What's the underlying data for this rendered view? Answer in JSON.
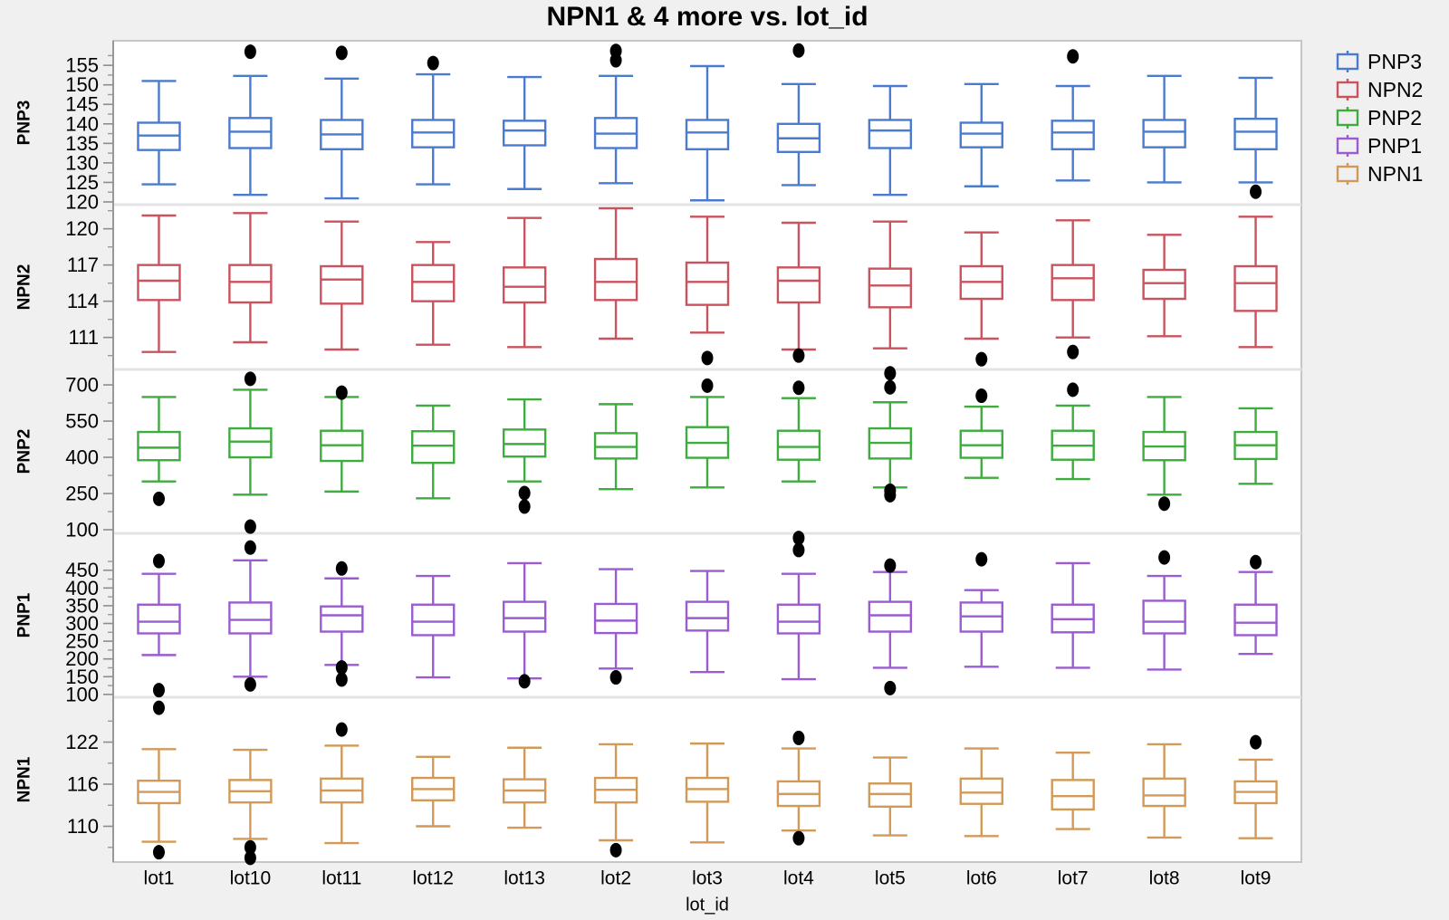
{
  "chart_data": {
    "type": "boxplot",
    "title": "NPN1 & 4 more vs. lot_id",
    "xlabel": "lot_id",
    "legend_position": "top-right",
    "grid": false,
    "categories": [
      "lot1",
      "lot10",
      "lot11",
      "lot12",
      "lot13",
      "lot2",
      "lot3",
      "lot4",
      "lot5",
      "lot6",
      "lot7",
      "lot8",
      "lot9"
    ],
    "legend": [
      {
        "label": "PNP3",
        "color": "#4B7BCE"
      },
      {
        "label": "NPN2",
        "color": "#C9535E"
      },
      {
        "label": "PNP2",
        "color": "#3EAC3E"
      },
      {
        "label": "PNP1",
        "color": "#9A5CD0"
      },
      {
        "label": "NPN1",
        "color": "#D29A58"
      }
    ],
    "outlier_color": "#000000",
    "panels": [
      {
        "name": "PNP3",
        "color": "#4B7BCE",
        "ylim": [
          119.3,
          161.3
        ],
        "yticks": [
          155,
          150,
          145,
          140,
          135,
          130,
          125,
          120
        ],
        "boxes": [
          {
            "lot": "lot1",
            "whislo": 124.5,
            "q1": 133.3,
            "med": 137.0,
            "q3": 140.3,
            "whishi": 151.0,
            "outliers": []
          },
          {
            "lot": "lot10",
            "whislo": 121.8,
            "q1": 133.8,
            "med": 138.0,
            "q3": 141.5,
            "whishi": 152.3,
            "outliers": [
              158.5
            ]
          },
          {
            "lot": "lot11",
            "whislo": 120.9,
            "q1": 133.5,
            "med": 137.3,
            "q3": 141.0,
            "whishi": 151.6,
            "outliers": [
              158.2
            ]
          },
          {
            "lot": "lot12",
            "whislo": 124.5,
            "q1": 134.0,
            "med": 137.8,
            "q3": 141.0,
            "whishi": 152.7,
            "outliers": [
              155.6
            ]
          },
          {
            "lot": "lot13",
            "whislo": 123.3,
            "q1": 134.5,
            "med": 138.3,
            "q3": 140.8,
            "whishi": 152.0,
            "outliers": []
          },
          {
            "lot": "lot2",
            "whislo": 124.8,
            "q1": 133.8,
            "med": 137.5,
            "q3": 141.5,
            "whishi": 152.3,
            "outliers": [
              158.7,
              156.3
            ]
          },
          {
            "lot": "lot3",
            "whislo": 120.4,
            "q1": 133.5,
            "med": 137.8,
            "q3": 141.0,
            "whishi": 154.8,
            "outliers": []
          },
          {
            "lot": "lot4",
            "whislo": 124.3,
            "q1": 132.8,
            "med": 136.3,
            "q3": 140.0,
            "whishi": 150.2,
            "outliers": [
              158.8
            ]
          },
          {
            "lot": "lot5",
            "whislo": 121.8,
            "q1": 133.8,
            "med": 138.3,
            "q3": 141.0,
            "whishi": 149.7,
            "outliers": []
          },
          {
            "lot": "lot6",
            "whislo": 124.0,
            "q1": 134.0,
            "med": 137.5,
            "q3": 140.3,
            "whishi": 150.2,
            "outliers": []
          },
          {
            "lot": "lot7",
            "whislo": 125.5,
            "q1": 133.5,
            "med": 137.8,
            "q3": 140.8,
            "whishi": 149.7,
            "outliers": [
              157.3
            ]
          },
          {
            "lot": "lot8",
            "whislo": 125.0,
            "q1": 134.0,
            "med": 138.0,
            "q3": 141.0,
            "whishi": 152.3,
            "outliers": []
          },
          {
            "lot": "lot9",
            "whislo": 125.0,
            "q1": 133.5,
            "med": 138.0,
            "q3": 141.3,
            "whishi": 151.8,
            "outliers": [
              122.6
            ]
          }
        ]
      },
      {
        "name": "NPN2",
        "color": "#C9535E",
        "ylim": [
          108.35,
          122.0
        ],
        "yticks": [
          120,
          117,
          114,
          111
        ],
        "boxes": [
          {
            "lot": "lot1",
            "whislo": 109.8,
            "q1": 114.1,
            "med": 115.7,
            "q3": 117.0,
            "whishi": 121.1,
            "outliers": []
          },
          {
            "lot": "lot10",
            "whislo": 110.6,
            "q1": 113.9,
            "med": 115.6,
            "q3": 117.0,
            "whishi": 121.3,
            "outliers": []
          },
          {
            "lot": "lot11",
            "whislo": 110.0,
            "q1": 113.8,
            "med": 115.8,
            "q3": 116.9,
            "whishi": 120.6,
            "outliers": []
          },
          {
            "lot": "lot12",
            "whislo": 110.4,
            "q1": 114.0,
            "med": 115.6,
            "q3": 117.0,
            "whishi": 118.9,
            "outliers": []
          },
          {
            "lot": "lot13",
            "whislo": 110.2,
            "q1": 113.9,
            "med": 115.2,
            "q3": 116.8,
            "whishi": 120.9,
            "outliers": []
          },
          {
            "lot": "lot2",
            "whislo": 110.9,
            "q1": 114.1,
            "med": 115.6,
            "q3": 117.5,
            "whishi": 121.7,
            "outliers": []
          },
          {
            "lot": "lot3",
            "whislo": 111.4,
            "q1": 113.7,
            "med": 115.6,
            "q3": 117.2,
            "whishi": 121.0,
            "outliers": [
              109.3
            ]
          },
          {
            "lot": "lot4",
            "whislo": 110.0,
            "q1": 113.9,
            "med": 115.7,
            "q3": 116.8,
            "whishi": 120.5,
            "outliers": [
              109.5
            ]
          },
          {
            "lot": "lot5",
            "whislo": 110.1,
            "q1": 113.5,
            "med": 115.3,
            "q3": 116.7,
            "whishi": 120.6,
            "outliers": []
          },
          {
            "lot": "lot6",
            "whislo": 110.9,
            "q1": 114.2,
            "med": 115.6,
            "q3": 116.9,
            "whishi": 119.7,
            "outliers": [
              109.2
            ]
          },
          {
            "lot": "lot7",
            "whislo": 111.0,
            "q1": 114.1,
            "med": 115.9,
            "q3": 117.0,
            "whishi": 120.7,
            "outliers": [
              109.8
            ]
          },
          {
            "lot": "lot8",
            "whislo": 111.1,
            "q1": 114.2,
            "med": 115.5,
            "q3": 116.6,
            "whishi": 119.5,
            "outliers": []
          },
          {
            "lot": "lot9",
            "whislo": 110.2,
            "q1": 113.2,
            "med": 115.5,
            "q3": 116.9,
            "whishi": 121.0,
            "outliers": []
          }
        ]
      },
      {
        "name": "PNP2",
        "color": "#3EAC3E",
        "ylim": [
          85,
          764
        ],
        "yticks": [
          700,
          550,
          400,
          250,
          100
        ],
        "boxes": [
          {
            "lot": "lot1",
            "whislo": 300,
            "q1": 388,
            "med": 440,
            "q3": 505,
            "whishi": 650,
            "outliers": [
              228
            ]
          },
          {
            "lot": "lot10",
            "whislo": 245,
            "q1": 400,
            "med": 465,
            "q3": 520,
            "whishi": 680,
            "outliers": [
              725,
              113
            ]
          },
          {
            "lot": "lot11",
            "whislo": 258,
            "q1": 385,
            "med": 450,
            "q3": 510,
            "whishi": 650,
            "outliers": [
              668
            ]
          },
          {
            "lot": "lot12",
            "whislo": 230,
            "q1": 377,
            "med": 448,
            "q3": 508,
            "whishi": 614,
            "outliers": []
          },
          {
            "lot": "lot13",
            "whislo": 300,
            "q1": 403,
            "med": 455,
            "q3": 515,
            "whishi": 640,
            "outliers": [
              252,
              196
            ]
          },
          {
            "lot": "lot2",
            "whislo": 268,
            "q1": 395,
            "med": 443,
            "q3": 500,
            "whishi": 620,
            "outliers": []
          },
          {
            "lot": "lot3",
            "whislo": 275,
            "q1": 398,
            "med": 460,
            "q3": 525,
            "whishi": 650,
            "outliers": [
              697
            ]
          },
          {
            "lot": "lot4",
            "whislo": 300,
            "q1": 390,
            "med": 443,
            "q3": 510,
            "whishi": 645,
            "outliers": [
              688
            ]
          },
          {
            "lot": "lot5",
            "whislo": 275,
            "q1": 395,
            "med": 460,
            "q3": 520,
            "whishi": 628,
            "outliers": [
              748,
              690,
              262,
              243
            ]
          },
          {
            "lot": "lot6",
            "whislo": 315,
            "q1": 398,
            "med": 450,
            "q3": 510,
            "whishi": 610,
            "outliers": [
              655
            ]
          },
          {
            "lot": "lot7",
            "whislo": 310,
            "q1": 390,
            "med": 448,
            "q3": 510,
            "whishi": 614,
            "outliers": [
              680
            ]
          },
          {
            "lot": "lot8",
            "whislo": 245,
            "q1": 388,
            "med": 445,
            "q3": 505,
            "whishi": 650,
            "outliers": [
              208
            ]
          },
          {
            "lot": "lot9",
            "whislo": 290,
            "q1": 393,
            "med": 450,
            "q3": 505,
            "whishi": 603,
            "outliers": []
          }
        ]
      },
      {
        "name": "PNP1",
        "color": "#9A5CD0",
        "ylim": [
          92,
          554
        ],
        "yticks": [
          450,
          400,
          350,
          300,
          250,
          200,
          150,
          100
        ],
        "boxes": [
          {
            "lot": "lot1",
            "whislo": 211,
            "q1": 272,
            "med": 305,
            "q3": 353,
            "whishi": 440,
            "outliers": [
              476,
              112
            ]
          },
          {
            "lot": "lot10",
            "whislo": 150,
            "q1": 272,
            "med": 310,
            "q3": 359,
            "whishi": 478,
            "outliers": [
              514,
              128
            ]
          },
          {
            "lot": "lot11",
            "whislo": 183,
            "q1": 277,
            "med": 323,
            "q3": 348,
            "whishi": 427,
            "outliers": [
              455,
              176,
              142
            ]
          },
          {
            "lot": "lot12",
            "whislo": 148,
            "q1": 267,
            "med": 305,
            "q3": 353,
            "whishi": 434,
            "outliers": []
          },
          {
            "lot": "lot13",
            "whislo": 145,
            "q1": 277,
            "med": 315,
            "q3": 361,
            "whishi": 470,
            "outliers": [
              137
            ]
          },
          {
            "lot": "lot2",
            "whislo": 173,
            "q1": 273,
            "med": 308,
            "q3": 355,
            "whishi": 453,
            "outliers": [
              148
            ]
          },
          {
            "lot": "lot3",
            "whislo": 163,
            "q1": 280,
            "med": 315,
            "q3": 361,
            "whishi": 448,
            "outliers": []
          },
          {
            "lot": "lot4",
            "whislo": 143,
            "q1": 272,
            "med": 305,
            "q3": 353,
            "whishi": 440,
            "outliers": [
              541,
              507
            ]
          },
          {
            "lot": "lot5",
            "whislo": 175,
            "q1": 277,
            "med": 323,
            "q3": 361,
            "whishi": 445,
            "outliers": [
              463,
              118
            ]
          },
          {
            "lot": "lot6",
            "whislo": 178,
            "q1": 277,
            "med": 320,
            "q3": 359,
            "whishi": 394,
            "outliers": [
              481
            ]
          },
          {
            "lot": "lot7",
            "whislo": 175,
            "q1": 275,
            "med": 312,
            "q3": 353,
            "whishi": 470,
            "outliers": []
          },
          {
            "lot": "lot8",
            "whislo": 170,
            "q1": 272,
            "med": 305,
            "q3": 364,
            "whishi": 434,
            "outliers": [
              486
            ]
          },
          {
            "lot": "lot9",
            "whislo": 214,
            "q1": 267,
            "med": 302,
            "q3": 353,
            "whishi": 445,
            "outliers": [
              473
            ]
          }
        ]
      },
      {
        "name": "NPN1",
        "color": "#D29A58",
        "ylim": [
          104.9,
          128.4
        ],
        "yticks": [
          122,
          116,
          110
        ],
        "boxes": [
          {
            "lot": "lot1",
            "whislo": 107.8,
            "q1": 113.3,
            "med": 114.9,
            "q3": 116.5,
            "whishi": 121.0,
            "outliers": [
              126.9,
              106.3
            ]
          },
          {
            "lot": "lot10",
            "whislo": 108.2,
            "q1": 113.4,
            "med": 115.0,
            "q3": 116.6,
            "whishi": 120.9,
            "outliers": [
              107.0,
              105.5
            ]
          },
          {
            "lot": "lot11",
            "whislo": 107.6,
            "q1": 113.4,
            "med": 115.1,
            "q3": 116.8,
            "whishi": 121.5,
            "outliers": [
              123.8
            ]
          },
          {
            "lot": "lot12",
            "whislo": 110.0,
            "q1": 113.7,
            "med": 115.3,
            "q3": 116.9,
            "whishi": 119.9,
            "outliers": []
          },
          {
            "lot": "lot13",
            "whislo": 109.8,
            "q1": 113.4,
            "med": 115.1,
            "q3": 116.7,
            "whishi": 121.2,
            "outliers": []
          },
          {
            "lot": "lot2",
            "whislo": 108.0,
            "q1": 113.4,
            "med": 115.2,
            "q3": 116.9,
            "whishi": 121.7,
            "outliers": [
              106.6
            ]
          },
          {
            "lot": "lot3",
            "whislo": 107.7,
            "q1": 113.5,
            "med": 115.3,
            "q3": 116.9,
            "whishi": 121.8,
            "outliers": []
          },
          {
            "lot": "lot4",
            "whislo": 109.4,
            "q1": 112.9,
            "med": 114.6,
            "q3": 116.4,
            "whishi": 121.1,
            "outliers": [
              122.6,
              108.3
            ]
          },
          {
            "lot": "lot5",
            "whislo": 108.7,
            "q1": 112.8,
            "med": 114.6,
            "q3": 116.1,
            "whishi": 119.8,
            "outliers": []
          },
          {
            "lot": "lot6",
            "whislo": 108.6,
            "q1": 113.2,
            "med": 114.8,
            "q3": 116.8,
            "whishi": 121.1,
            "outliers": []
          },
          {
            "lot": "lot7",
            "whislo": 109.6,
            "q1": 112.4,
            "med": 114.3,
            "q3": 116.6,
            "whishi": 120.5,
            "outliers": []
          },
          {
            "lot": "lot8",
            "whislo": 108.4,
            "q1": 112.9,
            "med": 114.4,
            "q3": 116.8,
            "whishi": 121.7,
            "outliers": []
          },
          {
            "lot": "lot9",
            "whislo": 108.3,
            "q1": 113.3,
            "med": 114.9,
            "q3": 116.4,
            "whishi": 119.5,
            "outliers": [
              122.0
            ]
          }
        ]
      }
    ]
  }
}
